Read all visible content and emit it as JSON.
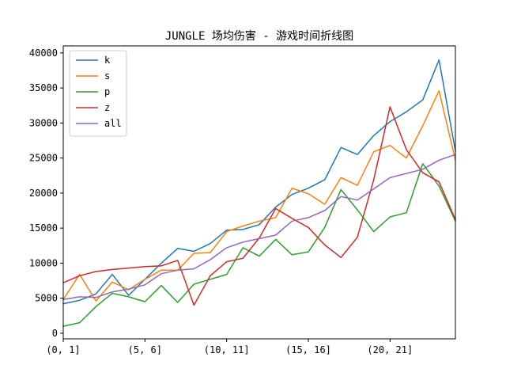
{
  "chart_data": {
    "type": "line",
    "title": "JUNGLE 场均伤害 - 游戏时间折线图",
    "xlabel": "",
    "ylabel": "",
    "x_tick_labels": [
      "(0, 1]",
      "(5, 6]",
      "(10, 11]",
      "(15, 16]",
      "(20, 21]"
    ],
    "x_tick_positions": [
      0,
      5,
      10,
      15,
      20
    ],
    "xlim": [
      0,
      24
    ],
    "ylim": [
      -800,
      41000
    ],
    "y_ticks": [
      0,
      5000,
      10000,
      15000,
      20000,
      25000,
      30000,
      35000,
      40000
    ],
    "grid": false,
    "legend_position": "top-left",
    "x": [
      0,
      1,
      2,
      3,
      4,
      5,
      6,
      7,
      8,
      9,
      10,
      11,
      12,
      13,
      14,
      15,
      16,
      17,
      18,
      19,
      20,
      21,
      22,
      23,
      24
    ],
    "series": [
      {
        "name": "k",
        "color": "#1f77b4",
        "values": [
          4200,
          4700,
          5600,
          8400,
          5400,
          7700,
          10000,
          12100,
          11700,
          12800,
          14700,
          14800,
          15500,
          18000,
          19800,
          20700,
          21900,
          26500,
          25500,
          28200,
          30200,
          31600,
          33300,
          39000,
          26000
        ]
      },
      {
        "name": "s",
        "color": "#ff7f0e",
        "values": [
          4800,
          8400,
          4600,
          7300,
          6200,
          7700,
          9000,
          9000,
          11400,
          11500,
          14500,
          15300,
          16000,
          16500,
          20700,
          19900,
          18400,
          22200,
          21100,
          25900,
          26800,
          25000,
          29600,
          34600,
          24700
        ]
      },
      {
        "name": "p",
        "color": "#2ca02c",
        "values": [
          1000,
          1500,
          3800,
          5700,
          5200,
          4500,
          6800,
          4400,
          7000,
          7700,
          8400,
          12200,
          11000,
          13400,
          11200,
          11600,
          15100,
          20500,
          17600,
          14500,
          16600,
          17200,
          24200,
          21000,
          16000
        ]
      },
      {
        "name": "z",
        "color": "#d62728",
        "values": [
          7200,
          8200,
          8800,
          9100,
          9300,
          9500,
          9600,
          10400,
          4000,
          8200,
          10200,
          10700,
          13600,
          17800,
          16400,
          15100,
          12600,
          10800,
          13700,
          21900,
          32300,
          26200,
          22900,
          21600,
          16200
        ]
      },
      {
        "name": "all",
        "color": "#9467bd",
        "values": [
          4800,
          5200,
          5100,
          5900,
          6300,
          6900,
          8500,
          9000,
          9200,
          10500,
          12200,
          13000,
          13500,
          14000,
          16000,
          16500,
          17500,
          19500,
          19000,
          20600,
          22200,
          22800,
          23400,
          24700,
          25500
        ]
      }
    ]
  }
}
